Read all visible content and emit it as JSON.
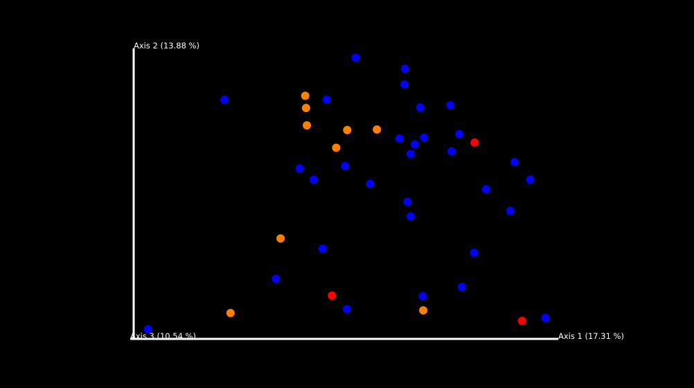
{
  "chart_data": {
    "type": "scatter",
    "axes": {
      "axis1_label": "Axis 1 (17.31 %)",
      "axis2_label": "Axis 2 (13.88 %)",
      "axis3_label": "Axis 3 (10.54 %)"
    },
    "grid": false,
    "legend": "none",
    "xlim": [
      0,
      1
    ],
    "ylim": [
      0,
      1
    ],
    "colors": {
      "background": "#000000",
      "axes": "#ffffff",
      "blue": "#0000ff",
      "orange": "#ff8000",
      "red": "#ff0000"
    },
    "series": [
      {
        "color_key": "blue",
        "points": [
          [
            0.523,
            0.968
          ],
          [
            0.639,
            0.93
          ],
          [
            0.638,
            0.876
          ],
          [
            0.214,
            0.823
          ],
          [
            0.455,
            0.824
          ],
          [
            0.675,
            0.797
          ],
          [
            0.746,
            0.804
          ],
          [
            0.767,
            0.705
          ],
          [
            0.684,
            0.693
          ],
          [
            0.626,
            0.69
          ],
          [
            0.662,
            0.67
          ],
          [
            0.652,
            0.637
          ],
          [
            0.749,
            0.646
          ],
          [
            0.897,
            0.609
          ],
          [
            0.934,
            0.548
          ],
          [
            0.391,
            0.587
          ],
          [
            0.498,
            0.595
          ],
          [
            0.424,
            0.548
          ],
          [
            0.557,
            0.534
          ],
          [
            0.83,
            0.515
          ],
          [
            0.645,
            0.472
          ],
          [
            0.887,
            0.441
          ],
          [
            0.652,
            0.422
          ],
          [
            0.445,
            0.31
          ],
          [
            0.802,
            0.297
          ],
          [
            0.335,
            0.207
          ],
          [
            0.773,
            0.179
          ],
          [
            0.681,
            0.147
          ],
          [
            0.502,
            0.103
          ],
          [
            0.97,
            0.072
          ],
          [
            0.034,
            0.033
          ]
        ]
      },
      {
        "color_key": "orange",
        "points": [
          [
            0.404,
            0.837
          ],
          [
            0.406,
            0.795
          ],
          [
            0.408,
            0.735
          ],
          [
            0.503,
            0.719
          ],
          [
            0.573,
            0.721
          ],
          [
            0.477,
            0.658
          ],
          [
            0.346,
            0.346
          ],
          [
            0.682,
            0.098
          ],
          [
            0.228,
            0.089
          ]
        ]
      },
      {
        "color_key": "red",
        "points": [
          [
            0.803,
            0.676
          ],
          [
            0.467,
            0.149
          ],
          [
            0.915,
            0.062
          ]
        ]
      }
    ]
  }
}
